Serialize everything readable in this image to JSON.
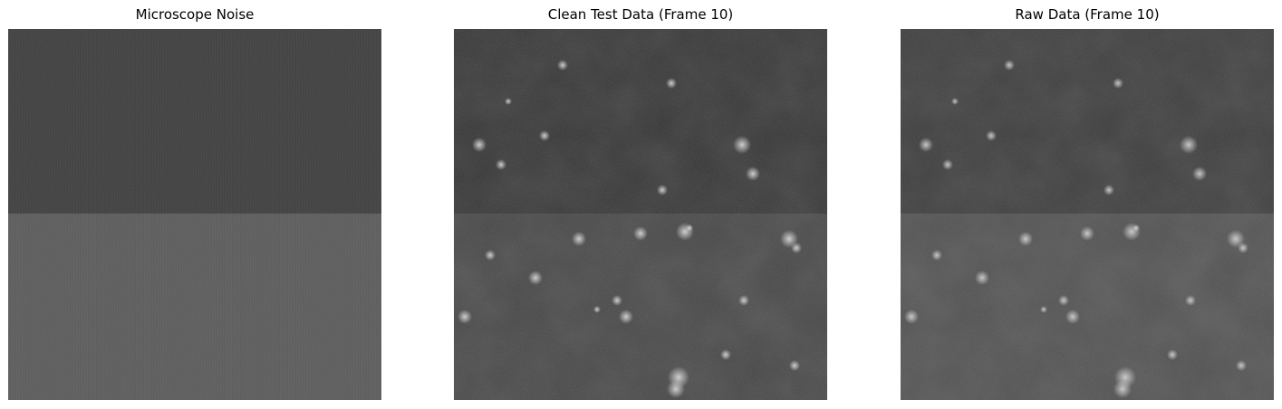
{
  "panels": [
    {
      "id": "noise",
      "title": "Microscope Noise",
      "image_description": "grayscale noise field, darker upper half and lighter lower half",
      "tones": {
        "top": "#404040",
        "bottom": "#5c5c5c"
      }
    },
    {
      "id": "clean",
      "title": "Clean Test Data (Frame 10)",
      "image_description": "grayscale microscopy frame with faint bright cells, darker upper half",
      "tones": {
        "top": "#363636",
        "bottom": "#474747"
      }
    },
    {
      "id": "raw",
      "title": "Raw Data (Frame 10)",
      "image_description": "grayscale raw microscopy frame with faint bright cells, darker upper half",
      "tones": {
        "top": "#3b3b3b",
        "bottom": "#505050"
      }
    }
  ]
}
